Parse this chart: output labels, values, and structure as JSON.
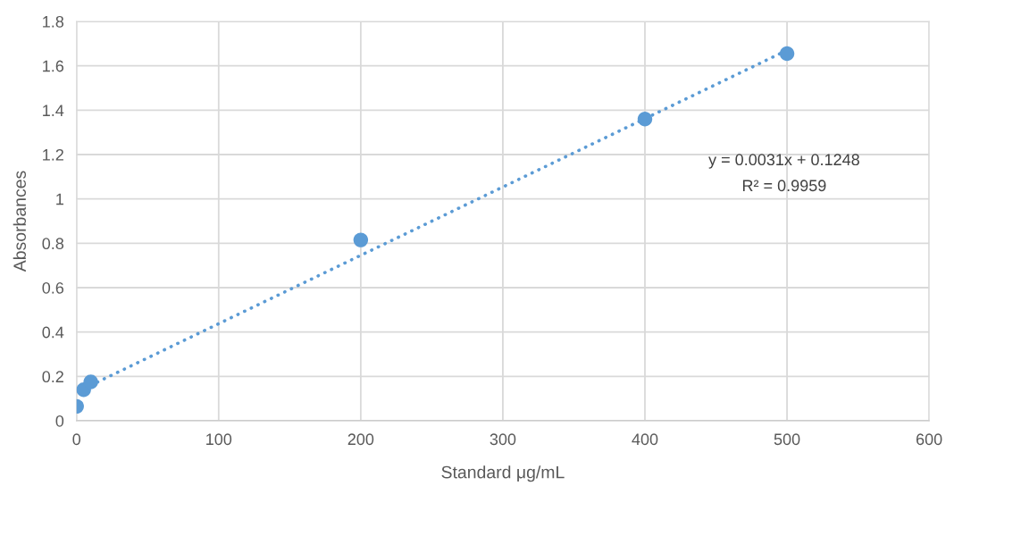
{
  "chart_data": {
    "type": "scatter",
    "xlabel": "Standard μg/mL",
    "ylabel": "Absorbances",
    "x": [
      0,
      5,
      10,
      200,
      400,
      500
    ],
    "series": [
      {
        "color": "#5b9bd5",
        "marker": "circle",
        "values": [
          0.065,
          0.14,
          0.175,
          0.815,
          1.36,
          1.655
        ]
      },
      {
        "type": "line",
        "color": "#5b9bd5",
        "line_style": "dotted",
        "marker": "none",
        "x": [
          10,
          500
        ],
        "values": [
          0.16,
          1.67
        ]
      }
    ],
    "annotations": [
      "y = 0.0031x + 0.1248",
      "R² = 0.9959"
    ],
    "xlim": [
      0,
      600
    ],
    "xticks": [
      0,
      100,
      200,
      300,
      400,
      500,
      600
    ],
    "ylim": [
      0,
      1.8
    ],
    "yticks": [
      0,
      0.2,
      0.4,
      0.6,
      0.8,
      1,
      1.2,
      1.4,
      1.6,
      1.8
    ],
    "grid": true
  }
}
